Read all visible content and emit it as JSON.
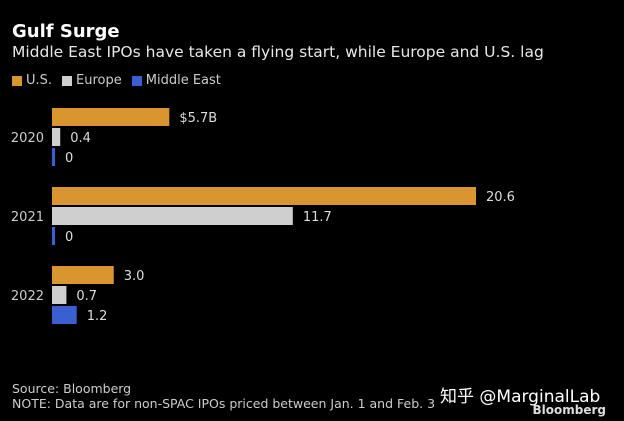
{
  "chart_data": {
    "type": "bar",
    "orientation": "horizontal",
    "title": "Gulf Surge",
    "subtitle": "Middle East IPOs have taken a flying start, while Europe and U.S. lag",
    "categories": [
      "2020",
      "2021",
      "2022"
    ],
    "series": [
      {
        "name": "U.S.",
        "color": "#d9952f",
        "values": [
          5.7,
          20.6,
          3.0
        ],
        "labels": [
          "$5.7B",
          "20.6",
          "3.0"
        ]
      },
      {
        "name": "Europe",
        "color": "#cfcfcf",
        "values": [
          0.4,
          11.7,
          0.7
        ],
        "labels": [
          "0.4",
          "11.7",
          "0.7"
        ]
      },
      {
        "name": "Middle East",
        "color": "#3a5fd0",
        "values": [
          0,
          0,
          1.2
        ],
        "labels": [
          "0",
          "0",
          "1.2"
        ]
      }
    ],
    "xlim": [
      0,
      25
    ],
    "grid": false,
    "legend_position": "top-left",
    "unit": "USD billions"
  },
  "footer": {
    "source": "Source: Bloomberg",
    "note": "NOTE: Data are for non-SPAC IPOs priced between Jan. 1 and Feb. 3"
  },
  "watermark": "知乎 @MarginalLab",
  "logo": "Bloomberg"
}
